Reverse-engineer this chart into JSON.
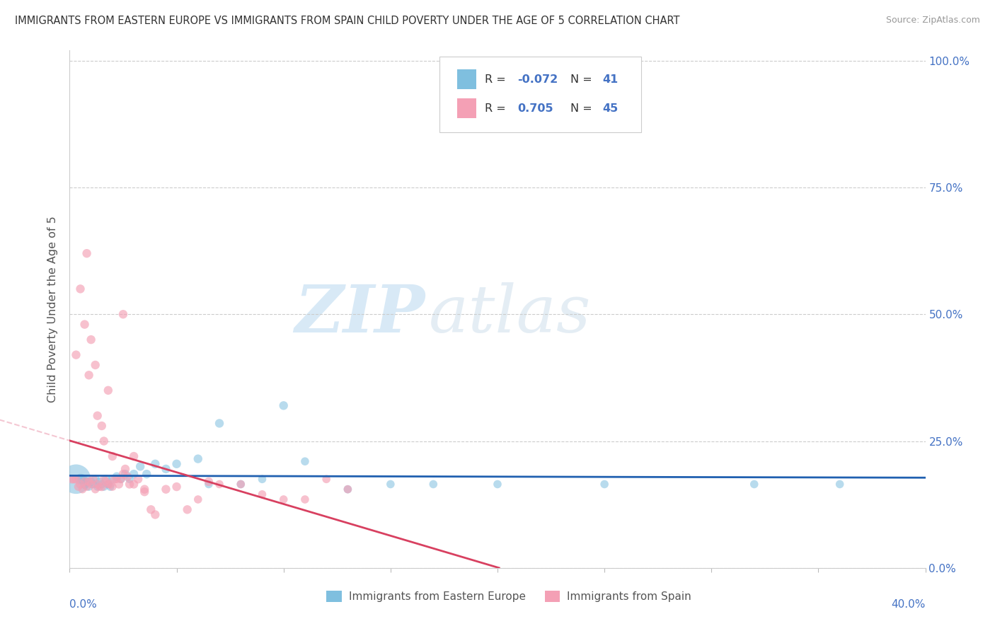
{
  "title": "IMMIGRANTS FROM EASTERN EUROPE VS IMMIGRANTS FROM SPAIN CHILD POVERTY UNDER THE AGE OF 5 CORRELATION CHART",
  "source": "Source: ZipAtlas.com",
  "ylabel": "Child Poverty Under the Age of 5",
  "legend_label1": "Immigrants from Eastern Europe",
  "legend_label2": "Immigrants from Spain",
  "R1": -0.072,
  "N1": 41,
  "R2": 0.705,
  "N2": 45,
  "color_blue": "#7fbfdf",
  "color_pink": "#f4a0b5",
  "color_blue_line": "#2060b0",
  "color_pink_line": "#d84060",
  "color_dashed_pink": "#f0b0c0",
  "color_dashed_blue": "#b0d0f0",
  "watermark_zip": "ZIP",
  "watermark_atlas": "atlas",
  "xlim": [
    0.0,
    0.4
  ],
  "ylim": [
    0.0,
    1.02
  ],
  "y_tick_vals": [
    0.0,
    0.25,
    0.5,
    0.75,
    1.0
  ],
  "right_tick_labels": [
    "0.0%",
    "25.0%",
    "50.0%",
    "75.0%",
    "100.0%"
  ],
  "blue_scatter_x": [
    0.003,
    0.005,
    0.006,
    0.007,
    0.008,
    0.009,
    0.01,
    0.011,
    0.012,
    0.013,
    0.014,
    0.015,
    0.016,
    0.017,
    0.018,
    0.019,
    0.02,
    0.022,
    0.024,
    0.026,
    0.028,
    0.03,
    0.033,
    0.036,
    0.04,
    0.045,
    0.05,
    0.06,
    0.065,
    0.07,
    0.08,
    0.09,
    0.1,
    0.11,
    0.13,
    0.15,
    0.17,
    0.2,
    0.25,
    0.32,
    0.36
  ],
  "blue_scatter_y": [
    0.175,
    0.175,
    0.175,
    0.165,
    0.17,
    0.16,
    0.17,
    0.165,
    0.175,
    0.16,
    0.17,
    0.165,
    0.16,
    0.175,
    0.165,
    0.16,
    0.175,
    0.18,
    0.175,
    0.185,
    0.175,
    0.185,
    0.2,
    0.185,
    0.205,
    0.195,
    0.205,
    0.215,
    0.165,
    0.285,
    0.165,
    0.175,
    0.32,
    0.21,
    0.155,
    0.165,
    0.165,
    0.165,
    0.165,
    0.165,
    0.165
  ],
  "blue_sizes": [
    900,
    120,
    100,
    90,
    80,
    70,
    80,
    70,
    80,
    70,
    80,
    70,
    70,
    80,
    70,
    70,
    80,
    80,
    70,
    80,
    70,
    80,
    80,
    80,
    80,
    80,
    80,
    80,
    70,
    80,
    70,
    70,
    80,
    70,
    70,
    70,
    70,
    70,
    70,
    70,
    70
  ],
  "pink_scatter_x": [
    0.001,
    0.002,
    0.003,
    0.004,
    0.005,
    0.006,
    0.007,
    0.008,
    0.009,
    0.01,
    0.011,
    0.012,
    0.013,
    0.014,
    0.015,
    0.016,
    0.017,
    0.018,
    0.019,
    0.02,
    0.021,
    0.022,
    0.023,
    0.024,
    0.025,
    0.026,
    0.027,
    0.028,
    0.03,
    0.032,
    0.035,
    0.038,
    0.04,
    0.045,
    0.05,
    0.055,
    0.06,
    0.065,
    0.07,
    0.08,
    0.09,
    0.1,
    0.11,
    0.12,
    0.13
  ],
  "pink_scatter_y": [
    0.175,
    0.175,
    0.175,
    0.16,
    0.165,
    0.155,
    0.17,
    0.16,
    0.17,
    0.165,
    0.175,
    0.155,
    0.165,
    0.16,
    0.16,
    0.175,
    0.17,
    0.165,
    0.165,
    0.16,
    0.175,
    0.175,
    0.165,
    0.175,
    0.185,
    0.195,
    0.18,
    0.165,
    0.165,
    0.175,
    0.155,
    0.115,
    0.105,
    0.155,
    0.16,
    0.115,
    0.135,
    0.17,
    0.165,
    0.165,
    0.145,
    0.135,
    0.135,
    0.175,
    0.155
  ],
  "pink_sizes": [
    80,
    80,
    80,
    70,
    80,
    70,
    80,
    70,
    80,
    70,
    80,
    70,
    80,
    70,
    80,
    70,
    80,
    70,
    80,
    70,
    80,
    70,
    80,
    70,
    80,
    80,
    80,
    80,
    80,
    80,
    80,
    80,
    80,
    80,
    80,
    80,
    70,
    80,
    70,
    70,
    70,
    70,
    70,
    70,
    70
  ],
  "pink_outliers_x": [
    0.003,
    0.005,
    0.007,
    0.008,
    0.009,
    0.01,
    0.012,
    0.013,
    0.015,
    0.016,
    0.018,
    0.02,
    0.025,
    0.03,
    0.035
  ],
  "pink_outliers_y": [
    0.42,
    0.55,
    0.48,
    0.62,
    0.38,
    0.45,
    0.4,
    0.3,
    0.28,
    0.25,
    0.35,
    0.22,
    0.5,
    0.22,
    0.15
  ],
  "pink_outlier_sizes": [
    80,
    80,
    80,
    80,
    80,
    80,
    80,
    80,
    80,
    80,
    80,
    80,
    80,
    80,
    80
  ]
}
